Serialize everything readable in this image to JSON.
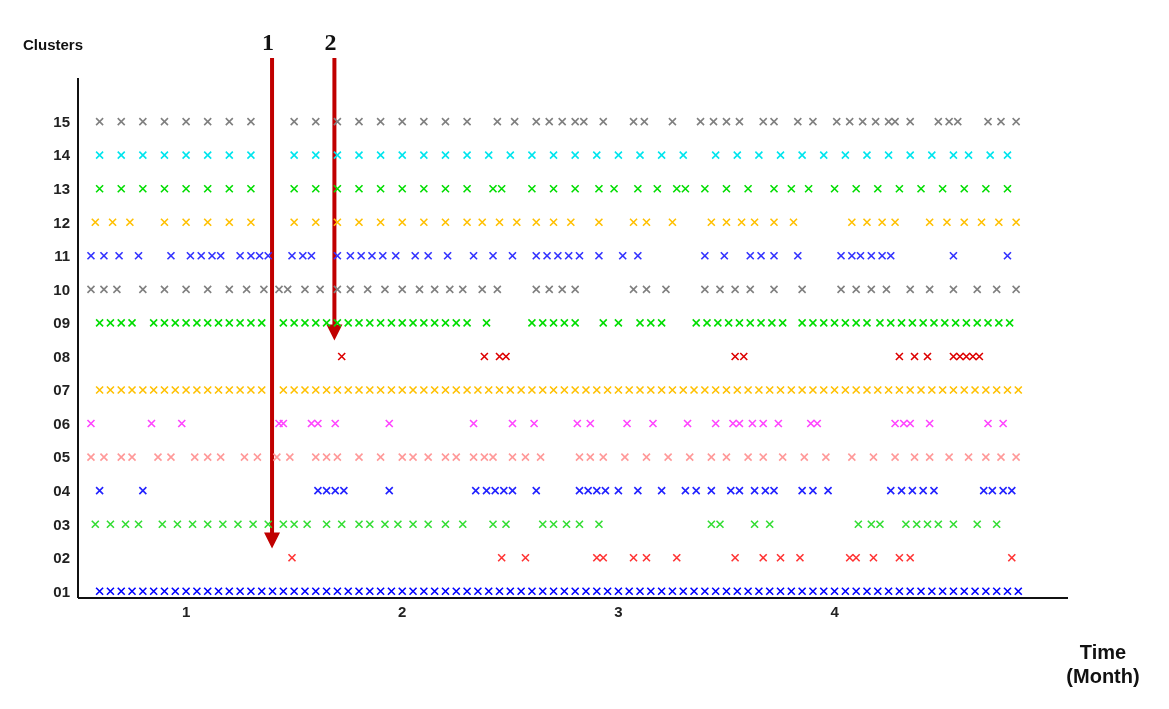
{
  "chart_data": {
    "type": "scatter",
    "xlabel": "Time (Month)",
    "ylabel": "Clusters",
    "marker": "cross",
    "grid": false,
    "legend": false,
    "xlim": [
      0.5,
      5.08
    ],
    "xticks": [
      1,
      2,
      3,
      4
    ],
    "ylim": [
      0.8,
      16.3
    ],
    "yticks": [
      {
        "value": 1,
        "label": "01"
      },
      {
        "value": 2,
        "label": "02"
      },
      {
        "value": 3,
        "label": "03"
      },
      {
        "value": 4,
        "label": "04"
      },
      {
        "value": 5,
        "label": "05"
      },
      {
        "value": 6,
        "label": "06"
      },
      {
        "value": 7,
        "label": "07"
      },
      {
        "value": 8,
        "label": "08"
      },
      {
        "value": 9,
        "label": "09"
      },
      {
        "value": 10,
        "label": "10"
      },
      {
        "value": 11,
        "label": "11"
      },
      {
        "value": 12,
        "label": "12"
      },
      {
        "value": 13,
        "label": "13"
      },
      {
        "value": 14,
        "label": "14"
      },
      {
        "value": 15,
        "label": "15"
      }
    ],
    "annotations": [
      "1",
      "2"
    ],
    "series": [
      {
        "color": "#0000ff",
        "x": [
          0.6,
          0.65,
          0.7,
          0.75,
          0.8,
          0.85,
          0.9,
          0.95,
          1,
          1.05,
          1.1,
          1.15,
          1.2,
          1.25,
          1.3,
          1.35,
          1.4,
          1.45,
          1.5,
          1.55,
          1.6,
          1.65,
          1.7,
          1.75,
          1.8,
          1.85,
          1.9,
          1.95,
          2,
          2.05,
          2.1,
          2.15,
          2.2,
          2.25,
          2.3,
          2.35,
          2.4,
          2.45,
          2.5,
          2.55,
          2.6,
          2.65,
          2.7,
          2.75,
          2.8,
          2.85,
          2.9,
          2.95,
          3,
          3.05,
          3.1,
          3.15,
          3.2,
          3.25,
          3.3,
          3.35,
          3.4,
          3.45,
          3.5,
          3.55,
          3.6,
          3.65,
          3.7,
          3.75,
          3.8,
          3.85,
          3.9,
          3.95,
          4,
          4.05,
          4.1,
          4.15,
          4.2,
          4.25,
          4.3,
          4.35,
          4.4,
          4.45,
          4.5,
          4.55,
          4.6,
          4.65,
          4.7,
          4.75,
          4.8,
          4.85
        ],
        "values": [
          1,
          1,
          1,
          1,
          1,
          1,
          1,
          1,
          1,
          1,
          1,
          1,
          1,
          1,
          1,
          1,
          1,
          1,
          1,
          1,
          1,
          1,
          1,
          1,
          1,
          1,
          1,
          1,
          1,
          1,
          1,
          1,
          1,
          1,
          1,
          1,
          1,
          1,
          1,
          1,
          1,
          1,
          1,
          1,
          1,
          1,
          1,
          1,
          1,
          1,
          1,
          1,
          1,
          1,
          1,
          1,
          1,
          1,
          1,
          1,
          1,
          1,
          1,
          1,
          1,
          1,
          1,
          1,
          1,
          1,
          1,
          1,
          1,
          1,
          1,
          1,
          1,
          1,
          1,
          1,
          1,
          1,
          1,
          1,
          1,
          1
        ]
      },
      {
        "color": "#ff3333",
        "x": [
          1.49,
          2.46,
          2.57,
          2.9,
          2.93,
          3.07,
          3.13,
          3.27,
          3.54,
          3.67,
          3.75,
          3.84,
          4.07,
          4.1,
          4.18,
          4.3,
          4.35,
          4.82
        ],
        "values": [
          2,
          2,
          2,
          2,
          2,
          2,
          2,
          2,
          2,
          2,
          2,
          2,
          2,
          2,
          2,
          2,
          2,
          2
        ]
      },
      {
        "color": "#33dd33",
        "x": [
          0.58,
          0.65,
          0.72,
          0.78,
          0.89,
          0.96,
          1.03,
          1.1,
          1.17,
          1.24,
          1.31,
          1.38,
          1.45,
          1.5,
          1.56,
          1.65,
          1.72,
          1.8,
          1.85,
          1.92,
          1.98,
          2.05,
          2.12,
          2.2,
          2.28,
          2.42,
          2.48,
          2.65,
          2.7,
          2.76,
          2.82,
          2.91,
          3.43,
          3.47,
          3.63,
          3.7,
          4.11,
          4.17,
          4.21,
          4.33,
          4.38,
          4.43,
          4.48,
          4.55,
          4.66,
          4.75
        ],
        "values": [
          3,
          3,
          3,
          3,
          3,
          3,
          3,
          3,
          3,
          3,
          3,
          3,
          3,
          3,
          3,
          3,
          3,
          3,
          3,
          3,
          3,
          3,
          3,
          3,
          3,
          3,
          3,
          3,
          3,
          3,
          3,
          3,
          3,
          3,
          3,
          3,
          3,
          3,
          3,
          3,
          3,
          3,
          3,
          3,
          3,
          3
        ]
      },
      {
        "color": "#2222ff",
        "x": [
          0.6,
          0.8,
          1.61,
          1.65,
          1.69,
          1.73,
          1.94,
          2.34,
          2.39,
          2.43,
          2.47,
          2.51,
          2.62,
          2.82,
          2.86,
          2.9,
          2.94,
          3,
          3.09,
          3.2,
          3.31,
          3.36,
          3.43,
          3.52,
          3.56,
          3.63,
          3.68,
          3.72,
          3.85,
          3.9,
          3.97,
          4.26,
          4.31,
          4.36,
          4.41,
          4.46,
          4.69,
          4.73,
          4.78,
          4.82
        ],
        "values": [
          4,
          4,
          4,
          4,
          4,
          4,
          4,
          4,
          4,
          4,
          4,
          4,
          4,
          4,
          4,
          4,
          4,
          4,
          4,
          4,
          4,
          4,
          4,
          4,
          4,
          4,
          4,
          4,
          4,
          4,
          4,
          4,
          4,
          4,
          4,
          4,
          4,
          4,
          4,
          4
        ]
      },
      {
        "color": "#ff9999",
        "x": [
          0.56,
          0.62,
          0.7,
          0.75,
          0.87,
          0.93,
          1.04,
          1.1,
          1.16,
          1.27,
          1.33,
          1.42,
          1.48,
          1.6,
          1.65,
          1.7,
          1.8,
          1.9,
          2,
          2.05,
          2.12,
          2.2,
          2.25,
          2.33,
          2.38,
          2.42,
          2.51,
          2.57,
          2.64,
          2.82,
          2.87,
          2.93,
          3.03,
          3.13,
          3.23,
          3.33,
          3.43,
          3.5,
          3.6,
          3.67,
          3.76,
          3.86,
          3.96,
          4.08,
          4.18,
          4.28,
          4.37,
          4.44,
          4.53,
          4.62,
          4.7,
          4.77,
          4.84
        ],
        "values": [
          5,
          5,
          5,
          5,
          5,
          5,
          5,
          5,
          5,
          5,
          5,
          5,
          5,
          5,
          5,
          5,
          5,
          5,
          5,
          5,
          5,
          5,
          5,
          5,
          5,
          5,
          5,
          5,
          5,
          5,
          5,
          5,
          5,
          5,
          5,
          5,
          5,
          5,
          5,
          5,
          5,
          5,
          5,
          5,
          5,
          5,
          5,
          5,
          5,
          5,
          5,
          5,
          5
        ]
      },
      {
        "color": "#ff44ff",
        "x": [
          0.56,
          0.84,
          0.98,
          1.43,
          1.45,
          1.58,
          1.61,
          1.69,
          1.94,
          2.33,
          2.51,
          2.61,
          2.81,
          2.87,
          3.04,
          3.16,
          3.32,
          3.45,
          3.53,
          3.56,
          3.62,
          3.67,
          3.74,
          3.89,
          3.92,
          4.28,
          4.32,
          4.35,
          4.44,
          4.71,
          4.78
        ],
        "values": [
          6,
          6,
          6,
          6,
          6,
          6,
          6,
          6,
          6,
          6,
          6,
          6,
          6,
          6,
          6,
          6,
          6,
          6,
          6,
          6,
          6,
          6,
          6,
          6,
          6,
          6,
          6,
          6,
          6,
          6,
          6
        ]
      },
      {
        "color": "#ffc000",
        "x": [
          0.6,
          0.65,
          0.7,
          0.75,
          0.8,
          0.85,
          0.9,
          0.95,
          1,
          1.05,
          1.1,
          1.15,
          1.2,
          1.25,
          1.3,
          1.35,
          1.4,
          1.45,
          1.5,
          1.55,
          1.6,
          1.65,
          1.7,
          1.75,
          1.8,
          1.85,
          1.9,
          1.95,
          2,
          2.05,
          2.1,
          2.15,
          2.2,
          2.25,
          2.3,
          2.35,
          2.4,
          2.45,
          2.5,
          2.55,
          2.6,
          2.65,
          2.7,
          2.75,
          2.8,
          2.85,
          2.9,
          2.95,
          3,
          3.05,
          3.1,
          3.15,
          3.2,
          3.25,
          3.3,
          3.35,
          3.4,
          3.45,
          3.5,
          3.55,
          3.6,
          3.65,
          3.7,
          3.75,
          3.8,
          3.85,
          3.9,
          3.95,
          4,
          4.05,
          4.1,
          4.15,
          4.2,
          4.25,
          4.3,
          4.35,
          4.4,
          4.45,
          4.5,
          4.55,
          4.6,
          4.65,
          4.7,
          4.75,
          4.8,
          4.85
        ],
        "values": [
          7,
          7,
          7,
          7,
          7,
          7,
          7,
          7,
          7,
          7,
          7,
          7,
          7,
          7,
          7,
          7,
          null,
          7,
          7,
          7,
          7,
          7,
          7,
          7,
          7,
          7,
          7,
          7,
          7,
          7,
          7,
          7,
          7,
          7,
          7,
          7,
          7,
          7,
          7,
          7,
          7,
          7,
          7,
          7,
          7,
          7,
          7,
          7,
          7,
          7,
          7,
          7,
          7,
          7,
          7,
          7,
          7,
          7,
          7,
          7,
          7,
          7,
          7,
          7,
          7,
          7,
          7,
          7,
          7,
          7,
          7,
          7,
          7,
          7,
          7,
          7,
          7,
          7,
          7,
          7,
          7,
          7,
          7,
          7,
          7,
          7
        ]
      },
      {
        "color": "#dd0000",
        "x": [
          1.72,
          2.38,
          2.45,
          2.48,
          3.54,
          3.58,
          4.3,
          4.37,
          4.43,
          4.55,
          4.58,
          4.61,
          4.64,
          4.67
        ],
        "values": [
          8,
          8,
          8,
          8,
          8,
          8,
          8,
          8,
          8,
          8,
          8,
          8,
          8,
          8
        ]
      },
      {
        "color": "#00dd00",
        "x": [
          0.6,
          0.65,
          0.7,
          0.75,
          0.85,
          0.9,
          0.95,
          1,
          1.05,
          1.1,
          1.15,
          1.2,
          1.25,
          1.3,
          1.35,
          1.4,
          1.45,
          1.5,
          1.55,
          1.6,
          1.65,
          1.7,
          1.75,
          1.8,
          1.85,
          1.9,
          1.95,
          2,
          2.05,
          2.1,
          2.15,
          2.2,
          2.25,
          2.3,
          2.39,
          2.6,
          2.65,
          2.7,
          2.75,
          2.8,
          2.93,
          3,
          3.1,
          3.15,
          3.2,
          3.36,
          3.41,
          3.46,
          3.51,
          3.56,
          3.61,
          3.66,
          3.71,
          3.76,
          3.85,
          3.9,
          3.95,
          4,
          4.05,
          4.1,
          4.15,
          4.21,
          4.26,
          4.31,
          4.36,
          4.41,
          4.46,
          4.51,
          4.56,
          4.61,
          4.66,
          4.71,
          4.76,
          4.81
        ],
        "values": [
          9,
          9,
          9,
          9,
          9,
          9,
          9,
          9,
          9,
          9,
          9,
          9,
          9,
          9,
          9,
          null,
          9,
          9,
          9,
          9,
          9,
          9,
          9,
          9,
          9,
          9,
          9,
          9,
          9,
          9,
          9,
          9,
          9,
          9,
          9,
          9,
          9,
          9,
          9,
          9,
          9,
          9,
          9,
          9,
          9,
          9,
          9,
          9,
          9,
          9,
          9,
          9,
          9,
          9,
          9,
          9,
          9,
          9,
          9,
          9,
          9,
          9,
          9,
          9,
          9,
          9,
          9,
          9,
          9,
          9,
          9,
          9,
          9,
          9
        ]
      },
      {
        "color": "#808080",
        "x": [
          0.56,
          0.62,
          0.68,
          0.8,
          0.9,
          1,
          1.1,
          1.2,
          1.28,
          1.36,
          1.43,
          1.47,
          1.55,
          1.62,
          1.7,
          1.76,
          1.84,
          1.92,
          2,
          2.08,
          2.15,
          2.22,
          2.28,
          2.37,
          2.44,
          2.62,
          2.68,
          2.74,
          2.8,
          3.07,
          3.13,
          3.22,
          3.4,
          3.47,
          3.54,
          3.61,
          3.72,
          3.85,
          4.03,
          4.1,
          4.17,
          4.24,
          4.35,
          4.44,
          4.55,
          4.66,
          4.75,
          4.84
        ],
        "values": [
          10,
          10,
          10,
          10,
          10,
          10,
          10,
          10,
          10,
          10,
          10,
          10,
          10,
          10,
          10,
          10,
          10,
          10,
          10,
          10,
          10,
          10,
          10,
          10,
          10,
          10,
          10,
          10,
          10,
          10,
          10,
          10,
          10,
          10,
          10,
          10,
          10,
          10,
          10,
          10,
          10,
          10,
          10,
          10,
          10,
          10,
          10,
          10
        ]
      },
      {
        "color": "#3333ff",
        "x": [
          0.56,
          0.62,
          0.69,
          0.78,
          0.93,
          1.02,
          1.07,
          1.12,
          1.16,
          1.25,
          1.3,
          1.34,
          1.38,
          1.49,
          1.54,
          1.58,
          1.7,
          1.76,
          1.81,
          1.86,
          1.91,
          1.97,
          2.06,
          2.12,
          2.21,
          2.33,
          2.42,
          2.51,
          2.62,
          2.67,
          2.72,
          2.77,
          2.82,
          2.91,
          3.02,
          3.09,
          3.4,
          3.49,
          3.61,
          3.66,
          3.72,
          3.83,
          4.03,
          4.08,
          4.12,
          4.17,
          4.22,
          4.26,
          4.55,
          4.8
        ],
        "values": [
          11,
          11,
          11,
          11,
          11,
          11,
          11,
          11,
          11,
          11,
          11,
          11,
          11,
          11,
          11,
          11,
          11,
          11,
          11,
          11,
          11,
          11,
          11,
          11,
          11,
          11,
          11,
          11,
          11,
          11,
          11,
          11,
          11,
          11,
          11,
          11,
          11,
          11,
          11,
          11,
          11,
          11,
          11,
          11,
          11,
          11,
          11,
          11,
          11,
          11
        ]
      },
      {
        "color": "#ffc000",
        "x": [
          0.58,
          0.66,
          0.74,
          0.9,
          1,
          1.1,
          1.2,
          1.3,
          1.4,
          1.5,
          1.6,
          1.7,
          1.8,
          1.9,
          2,
          2.1,
          2.2,
          2.3,
          2.37,
          2.45,
          2.53,
          2.62,
          2.7,
          2.78,
          2.91,
          3.07,
          3.13,
          3.25,
          3.43,
          3.5,
          3.57,
          3.63,
          3.72,
          3.81,
          4.08,
          4.15,
          4.22,
          4.28,
          4.44,
          4.52,
          4.6,
          4.68,
          4.76,
          4.84
        ],
        "values": [
          12,
          12,
          12,
          12,
          12,
          12,
          12,
          12,
          null,
          12,
          12,
          12,
          12,
          12,
          12,
          12,
          12,
          12,
          12,
          12,
          12,
          12,
          12,
          12,
          12,
          12,
          12,
          12,
          12,
          12,
          12,
          12,
          12,
          12,
          12,
          12,
          12,
          12,
          12,
          12,
          12,
          12,
          12,
          12
        ]
      },
      {
        "color": "#00dd00",
        "x": [
          0.6,
          0.7,
          0.8,
          0.9,
          1,
          1.1,
          1.2,
          1.3,
          1.4,
          1.5,
          1.6,
          1.7,
          1.8,
          1.9,
          2,
          2.1,
          2.2,
          2.3,
          2.42,
          2.46,
          2.6,
          2.7,
          2.8,
          2.91,
          2.98,
          3.09,
          3.18,
          3.27,
          3.31,
          3.4,
          3.5,
          3.6,
          3.72,
          3.8,
          3.88,
          4,
          4.1,
          4.2,
          4.3,
          4.4,
          4.5,
          4.6,
          4.7,
          4.8
        ],
        "values": [
          13,
          13,
          13,
          13,
          13,
          13,
          13,
          13,
          null,
          13,
          13,
          13,
          13,
          13,
          13,
          13,
          13,
          13,
          13,
          13,
          13,
          13,
          13,
          13,
          13,
          13,
          13,
          13,
          13,
          13,
          13,
          13,
          13,
          13,
          13,
          13,
          13,
          13,
          13,
          13,
          13,
          13,
          13,
          13
        ]
      },
      {
        "color": "#00e5ee",
        "x": [
          0.6,
          0.7,
          0.8,
          0.9,
          1,
          1.1,
          1.2,
          1.3,
          1.4,
          1.5,
          1.6,
          1.7,
          1.8,
          1.9,
          2,
          2.1,
          2.2,
          2.3,
          2.4,
          2.5,
          2.6,
          2.7,
          2.8,
          2.9,
          3,
          3.1,
          3.2,
          3.3,
          3.45,
          3.55,
          3.65,
          3.75,
          3.85,
          3.95,
          4.05,
          4.15,
          4.25,
          4.35,
          4.45,
          4.55,
          4.62,
          4.72,
          4.8
        ],
        "values": [
          14,
          14,
          14,
          14,
          14,
          14,
          14,
          14,
          null,
          14,
          14,
          14,
          14,
          14,
          14,
          14,
          14,
          14,
          14,
          14,
          14,
          14,
          14,
          14,
          14,
          14,
          14,
          14,
          14,
          14,
          14,
          14,
          14,
          14,
          14,
          14,
          14,
          14,
          14,
          14,
          14,
          14,
          14
        ]
      },
      {
        "color": "#808080",
        "x": [
          0.6,
          0.7,
          0.8,
          0.9,
          1,
          1.1,
          1.2,
          1.3,
          1.4,
          1.5,
          1.6,
          1.7,
          1.8,
          1.9,
          2,
          2.1,
          2.2,
          2.3,
          2.44,
          2.52,
          2.62,
          2.68,
          2.74,
          2.8,
          2.84,
          2.93,
          3.07,
          3.12,
          3.25,
          3.38,
          3.44,
          3.5,
          3.56,
          3.67,
          3.72,
          3.83,
          3.9,
          4.01,
          4.07,
          4.13,
          4.19,
          4.25,
          4.28,
          4.35,
          4.48,
          4.53,
          4.57,
          4.71,
          4.77,
          4.84
        ],
        "values": [
          15,
          15,
          15,
          15,
          15,
          15,
          15,
          15,
          null,
          15,
          15,
          15,
          15,
          15,
          15,
          15,
          15,
          15,
          15,
          15,
          15,
          15,
          15,
          15,
          15,
          15,
          15,
          15,
          15,
          15,
          15,
          15,
          15,
          15,
          15,
          15,
          15,
          15,
          15,
          15,
          15,
          15,
          15,
          15,
          15,
          15,
          15,
          15,
          15,
          15
        ]
      }
    ]
  }
}
